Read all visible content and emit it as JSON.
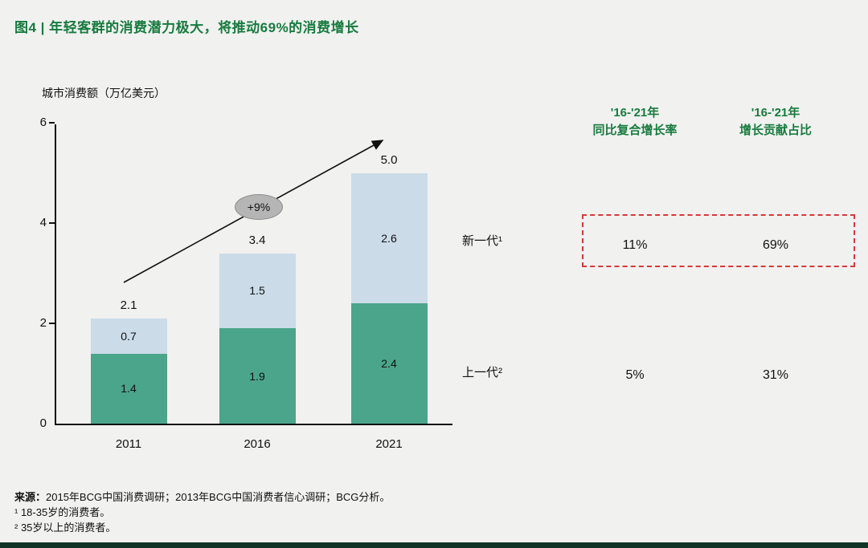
{
  "title": "图4 | 年轻客群的消费潜力极大，将推动69%的消费增长",
  "colors": {
    "title_green": "#177B3E",
    "bar_green": "#4BA58A",
    "bar_blue": "#CBDBE8",
    "highlight_red": "#D9383A",
    "annotation_gray": "#B5B5B5",
    "footer_bar": "#113628"
  },
  "chart_data": {
    "type": "bar",
    "stacked": true,
    "title": "图4 | 年轻客群的消费潜力极大，将推动69%的消费增长",
    "ylabel": "城市消费额（万亿美元）",
    "xlabel": "",
    "ylim": [
      0,
      6
    ],
    "yticks": [
      0,
      2,
      4,
      6
    ],
    "grid": false,
    "legend_position": "right-of-bars",
    "categories": [
      "2011",
      "2016",
      "2021"
    ],
    "series": [
      {
        "key": "older",
        "name": "上一代²",
        "color": "#4BA58A",
        "values": [
          1.4,
          1.9,
          2.4
        ]
      },
      {
        "key": "younger",
        "name": "新一代¹",
        "color": "#CBDBE8",
        "values": [
          0.7,
          1.5,
          2.6
        ]
      }
    ],
    "totals": [
      2.1,
      3.4,
      5.0
    ],
    "annotation": "+9%"
  },
  "table": {
    "columns": [
      {
        "line1": "'16-'21年",
        "line2": "同比复合增长率"
      },
      {
        "line1": "'16-'21年",
        "line2": "增长贡献占比"
      }
    ],
    "rows": [
      {
        "label": "新一代¹",
        "cagr": "11%",
        "contribution": "69%",
        "highlighted": true
      },
      {
        "label": "上一代²",
        "cagr": "5%",
        "contribution": "31%",
        "highlighted": false
      }
    ]
  },
  "footnotes": {
    "source_label": "来源：",
    "source_text": "2015年BCG中国消费调研；2013年BCG中国消费者信心调研；BCG分析。",
    "note1": "¹ 18-35岁的消费者。",
    "note2": "² 35岁以上的消费者。"
  }
}
